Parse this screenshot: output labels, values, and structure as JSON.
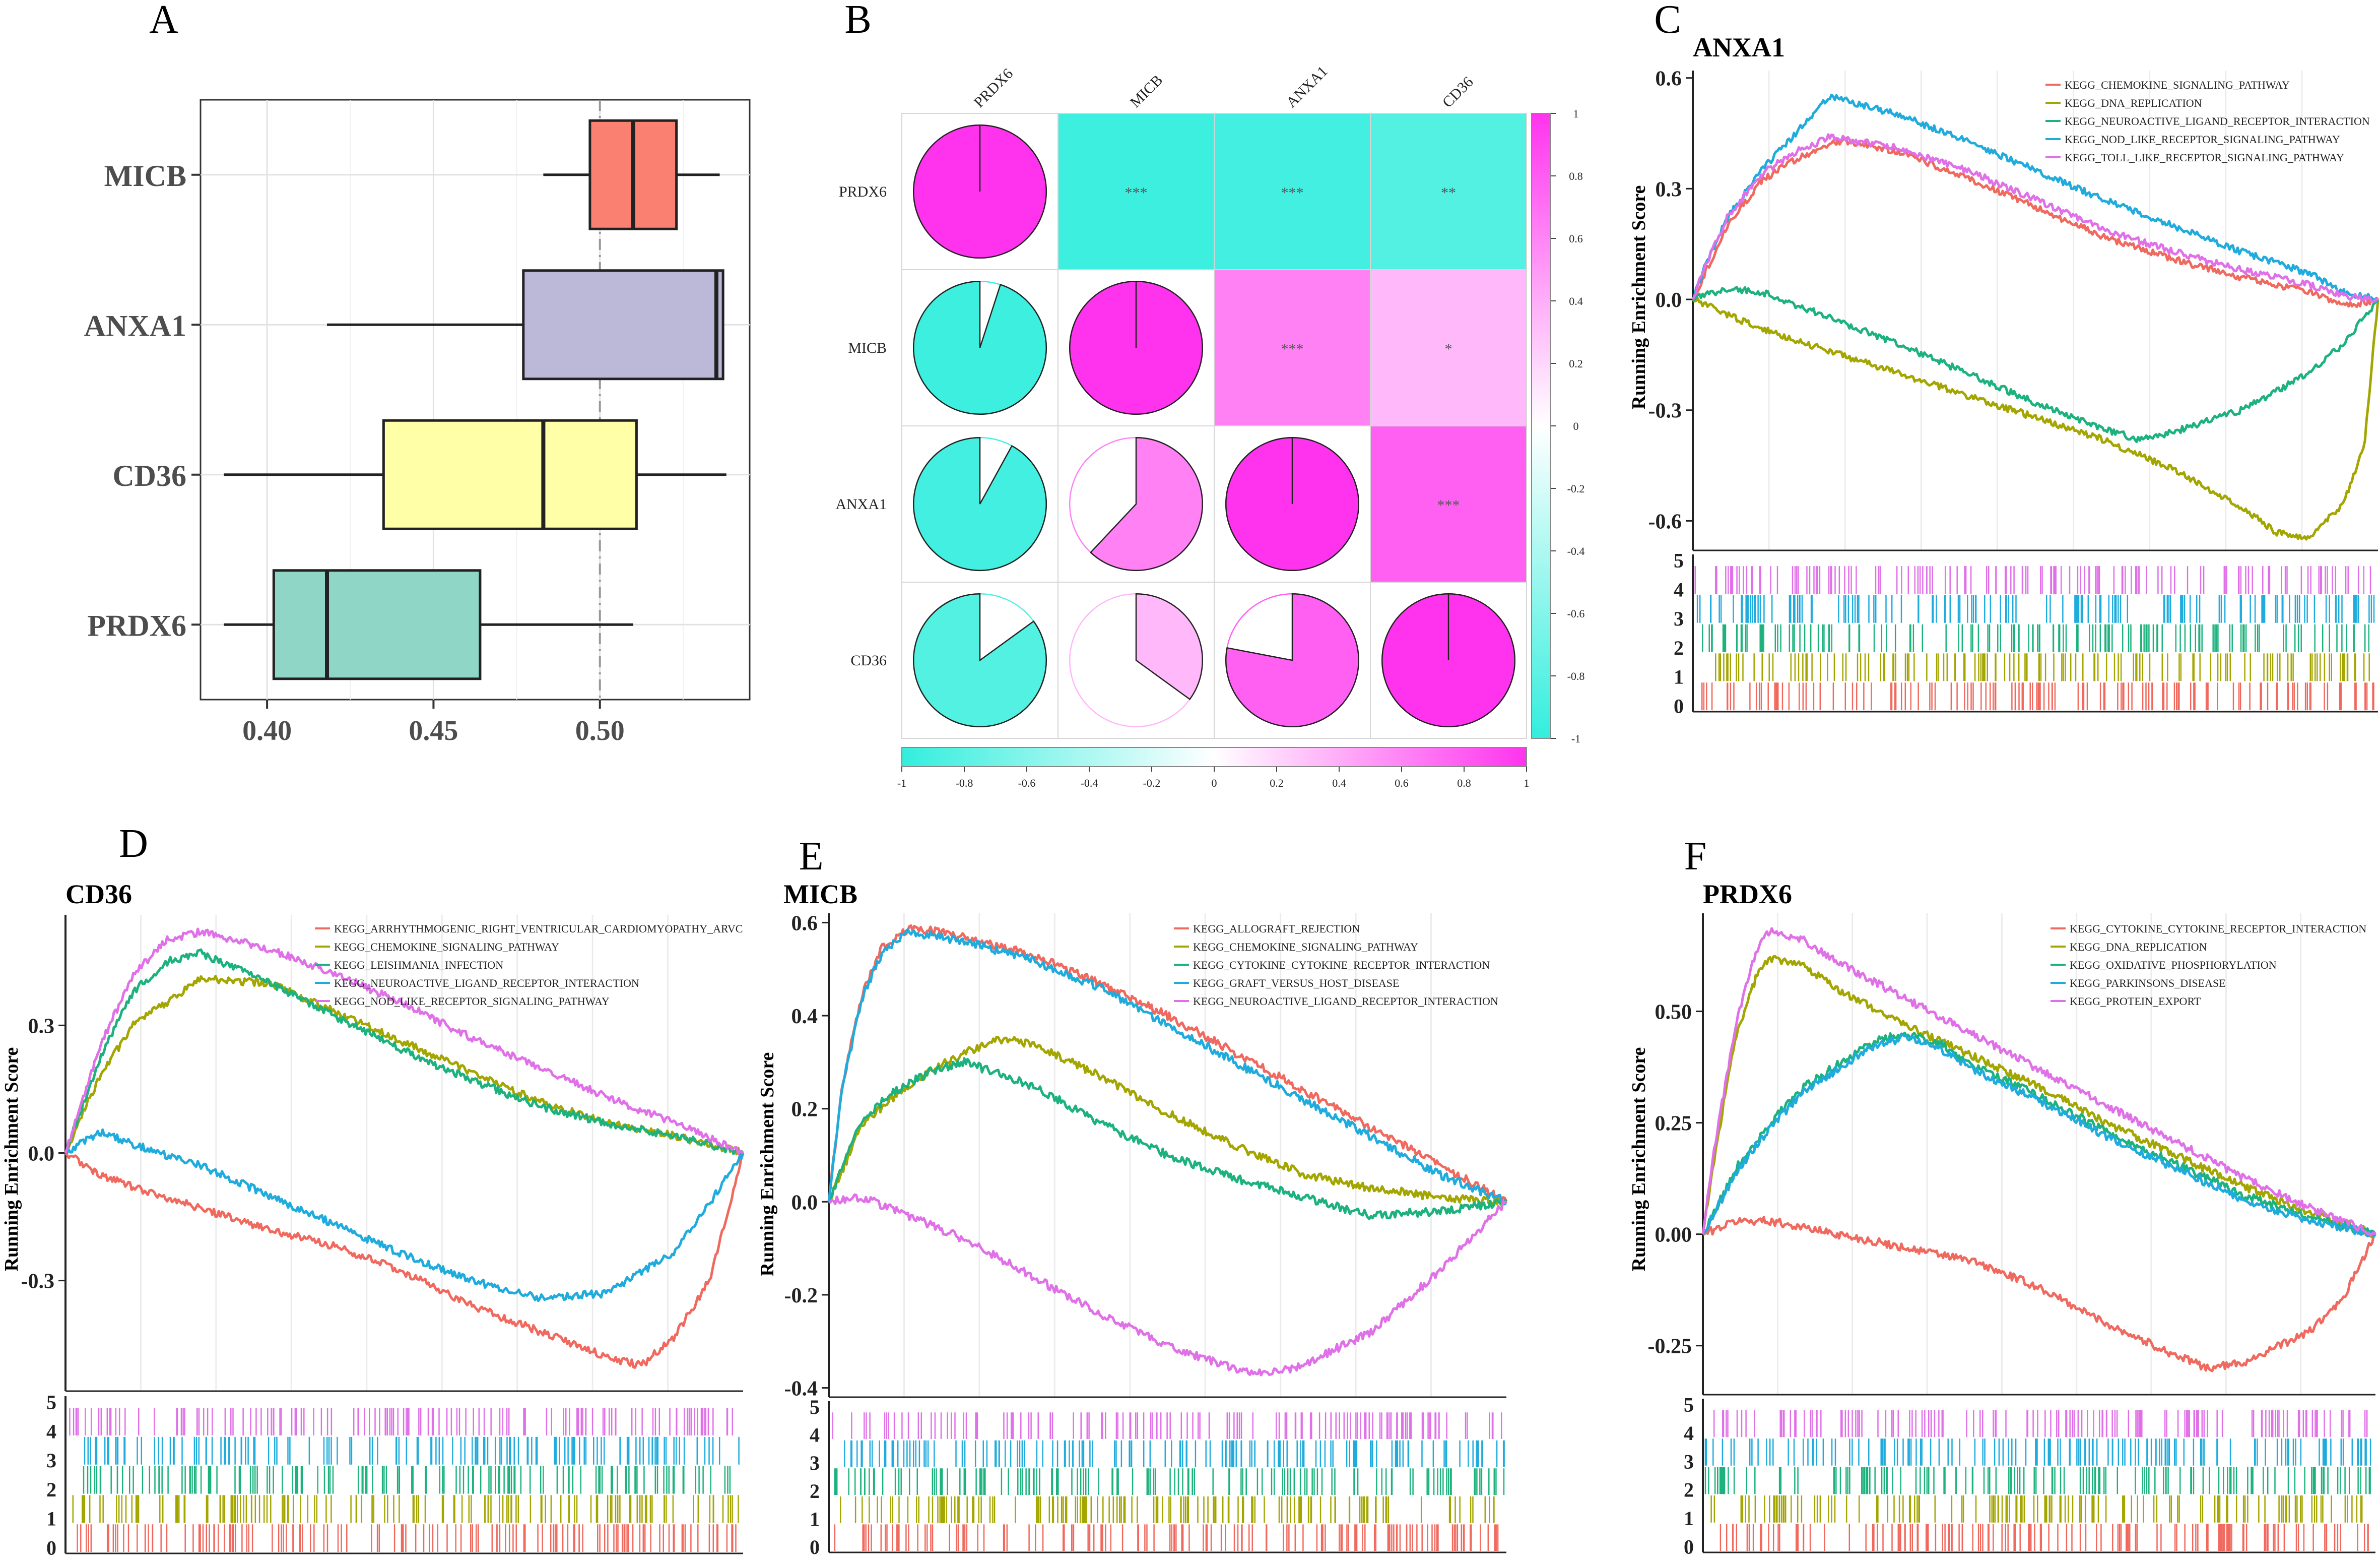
{
  "colors": {
    "red": "#F0695F",
    "olive": "#A3A500",
    "green": "#1DB27D",
    "blue": "#20ABDD",
    "magenta": "#E070E8",
    "box_micb": "#FA8072",
    "box_anxa1": "#BBB8D8",
    "box_cd36": "#FFFFA8",
    "box_prdx6": "#8FD6C6",
    "cor_pos": "#FF33EE",
    "cor_neg": "#33EEDD"
  },
  "chart_data": [
    {
      "panel": "A",
      "type": "boxplot",
      "orientation": "horizontal",
      "title": "",
      "categories": [
        "MICB",
        "ANXA1",
        "CD36",
        "PRDX6"
      ],
      "boxes": [
        {
          "name": "MICB",
          "whisker_low": 0.483,
          "q1": 0.497,
          "median": 0.51,
          "q3": 0.523,
          "whisker_high": 0.536,
          "fill_key": "box_micb"
        },
        {
          "name": "ANXA1",
          "whisker_low": 0.418,
          "q1": 0.477,
          "median": 0.535,
          "q3": 0.537,
          "whisker_high": 0.537,
          "fill_key": "box_anxa1"
        },
        {
          "name": "CD36",
          "whisker_low": 0.387,
          "q1": 0.435,
          "median": 0.483,
          "q3": 0.511,
          "whisker_high": 0.538,
          "fill_key": "box_cd36"
        },
        {
          "name": "PRDX6",
          "whisker_low": 0.387,
          "q1": 0.402,
          "median": 0.418,
          "q3": 0.464,
          "whisker_high": 0.51,
          "fill_key": "box_prdx6"
        }
      ],
      "xlim": [
        0.38,
        0.545
      ],
      "xticks": [
        0.4,
        0.45,
        0.5
      ],
      "xtick_labels": [
        "0.40",
        "0.45",
        "0.50"
      ],
      "reference_line": 0.5,
      "xlabel": "",
      "ylabel": ""
    },
    {
      "panel": "B",
      "type": "heatmap",
      "title": "",
      "genes": [
        "PRDX6",
        "MICB",
        "ANXA1",
        "CD36"
      ],
      "correlation": [
        [
          1.0,
          -0.95,
          -0.92,
          -0.85
        ],
        [
          -0.95,
          1.0,
          0.62,
          0.35
        ],
        [
          -0.92,
          0.62,
          1.0,
          0.78
        ],
        [
          -0.85,
          0.35,
          0.78,
          1.0
        ]
      ],
      "significance": [
        [
          "",
          "***",
          "***",
          "**"
        ],
        [
          "",
          "",
          "***",
          "*"
        ],
        [
          "",
          "",
          "",
          "***"
        ],
        [
          "",
          "",
          "",
          ""
        ]
      ],
      "colorbar_range": [
        -1,
        1
      ],
      "colorbar_ticks": [
        "1",
        "0.8",
        "0.6",
        "0.4",
        "0.2",
        "0",
        "-0.2",
        "-0.4",
        "-0.6",
        "-0.8",
        "-1"
      ],
      "bottom_ticks": [
        "-1",
        "-0.8",
        "-0.6",
        "-0.4",
        "-0.2",
        "0",
        "0.2",
        "0.4",
        "0.6",
        "0.8",
        "1"
      ]
    },
    {
      "panel": "C",
      "type": "line",
      "title": "ANXA1",
      "ylabel": "Running Enrichment Score",
      "xlabel": "",
      "ylim": [
        -0.68,
        0.62
      ],
      "yticks": [
        -0.6,
        -0.3,
        0.0,
        0.3,
        0.6
      ],
      "ytick_labels": [
        "-0.6",
        "-0.3",
        "0.0",
        "0.3",
        "0.6"
      ],
      "rug_labels": [
        "0",
        "1",
        "2",
        "3",
        "4",
        "5"
      ],
      "series": [
        {
          "name": "KEGG_CHEMOKINE_SIGNALING_PATHWAY",
          "color_key": "red",
          "x": [
            0,
            0.02,
            0.05,
            0.1,
            0.15,
            0.2,
            0.22,
            0.3,
            0.4,
            0.5,
            0.6,
            0.7,
            0.8,
            0.9,
            0.95,
            1.0
          ],
          "y": [
            0,
            0.08,
            0.2,
            0.32,
            0.38,
            0.42,
            0.43,
            0.4,
            0.33,
            0.25,
            0.17,
            0.11,
            0.06,
            0.02,
            -0.02,
            0
          ]
        },
        {
          "name": "KEGG_DNA_REPLICATION",
          "color_key": "olive",
          "x": [
            0,
            0.1,
            0.2,
            0.3,
            0.4,
            0.5,
            0.6,
            0.7,
            0.8,
            0.85,
            0.9,
            0.95,
            0.98,
            1.0
          ],
          "y": [
            0,
            -0.08,
            -0.14,
            -0.2,
            -0.26,
            -0.32,
            -0.38,
            -0.46,
            -0.56,
            -0.63,
            -0.65,
            -0.55,
            -0.4,
            0
          ]
        },
        {
          "name": "KEGG_NEUROACTIVE_LIGAND_RECEPTOR_INTERACTION",
          "color_key": "green",
          "x": [
            0,
            0.05,
            0.1,
            0.2,
            0.3,
            0.4,
            0.5,
            0.6,
            0.65,
            0.7,
            0.8,
            0.9,
            0.95,
            1.0
          ],
          "y": [
            0,
            0.03,
            0.02,
            -0.05,
            -0.12,
            -0.2,
            -0.28,
            -0.35,
            -0.38,
            -0.36,
            -0.3,
            -0.2,
            -0.12,
            0
          ]
        },
        {
          "name": "KEGG_NOD_LIKE_RECEPTOR_SIGNALING_PATHWAY",
          "color_key": "blue",
          "x": [
            0,
            0.02,
            0.05,
            0.1,
            0.15,
            0.2,
            0.3,
            0.4,
            0.5,
            0.6,
            0.7,
            0.8,
            0.9,
            0.95,
            1.0
          ],
          "y": [
            0,
            0.1,
            0.22,
            0.35,
            0.45,
            0.55,
            0.5,
            0.43,
            0.35,
            0.27,
            0.2,
            0.13,
            0.07,
            0.02,
            0
          ]
        },
        {
          "name": "KEGG_TOLL_LIKE_RECEPTOR_SIGNALING_PATHWAY",
          "color_key": "magenta",
          "x": [
            0,
            0.02,
            0.05,
            0.1,
            0.15,
            0.2,
            0.3,
            0.4,
            0.5,
            0.6,
            0.7,
            0.8,
            0.9,
            0.95,
            1.0
          ],
          "y": [
            0,
            0.1,
            0.22,
            0.34,
            0.4,
            0.44,
            0.41,
            0.35,
            0.27,
            0.19,
            0.13,
            0.08,
            0.04,
            0.01,
            0
          ]
        }
      ]
    },
    {
      "panel": "D",
      "type": "line",
      "title": "CD36",
      "ylabel": "Running Enrichment Score",
      "xlabel": "",
      "ylim": [
        -0.56,
        0.56
      ],
      "yticks": [
        -0.3,
        0.0,
        0.3
      ],
      "ytick_labels": [
        "-0.3",
        "0.0",
        "0.3"
      ],
      "rug_labels": [
        "0",
        "1",
        "2",
        "3",
        "4",
        "5"
      ],
      "series": [
        {
          "name": "KEGG_ARRHYTHMOGENIC_RIGHT_VENTRICULAR_CARDIOMYOPATHY_ARVC",
          "color_key": "red",
          "x": [
            0,
            0.05,
            0.1,
            0.2,
            0.3,
            0.4,
            0.5,
            0.6,
            0.7,
            0.8,
            0.85,
            0.9,
            0.95,
            1.0
          ],
          "y": [
            0,
            -0.05,
            -0.08,
            -0.13,
            -0.18,
            -0.22,
            -0.28,
            -0.36,
            -0.42,
            -0.48,
            -0.5,
            -0.43,
            -0.3,
            0
          ]
        },
        {
          "name": "KEGG_CHEMOKINE_SIGNALING_PATHWAY",
          "color_key": "olive",
          "x": [
            0,
            0.05,
            0.1,
            0.2,
            0.3,
            0.4,
            0.5,
            0.6,
            0.7,
            0.8,
            0.9,
            1.0
          ],
          "y": [
            0,
            0.18,
            0.3,
            0.41,
            0.4,
            0.33,
            0.26,
            0.19,
            0.12,
            0.07,
            0.04,
            0
          ]
        },
        {
          "name": "KEGG_LEISHMANIA_INFECTION",
          "color_key": "green",
          "x": [
            0,
            0.05,
            0.1,
            0.15,
            0.2,
            0.3,
            0.4,
            0.5,
            0.6,
            0.7,
            0.8,
            0.9,
            1.0
          ],
          "y": [
            0,
            0.22,
            0.38,
            0.45,
            0.47,
            0.4,
            0.32,
            0.24,
            0.17,
            0.11,
            0.07,
            0.04,
            0
          ]
        },
        {
          "name": "KEGG_NEUROACTIVE_LIGAND_RECEPTOR_INTERACTION",
          "color_key": "blue",
          "x": [
            0,
            0.05,
            0.1,
            0.2,
            0.3,
            0.4,
            0.5,
            0.6,
            0.7,
            0.8,
            0.9,
            0.95,
            1.0
          ],
          "y": [
            0,
            0.05,
            0.02,
            -0.03,
            -0.1,
            -0.17,
            -0.24,
            -0.3,
            -0.34,
            -0.33,
            -0.23,
            -0.12,
            0
          ]
        },
        {
          "name": "KEGG_NOD_LIKE_RECEPTOR_SIGNALING_PATHWAY",
          "color_key": "magenta",
          "x": [
            0,
            0.05,
            0.1,
            0.15,
            0.2,
            0.3,
            0.4,
            0.5,
            0.6,
            0.7,
            0.8,
            0.9,
            1.0
          ],
          "y": [
            0,
            0.25,
            0.42,
            0.5,
            0.52,
            0.48,
            0.42,
            0.35,
            0.27,
            0.2,
            0.13,
            0.07,
            0
          ]
        }
      ]
    },
    {
      "panel": "E",
      "type": "line",
      "title": "MICB",
      "ylabel": "Running Enrichment Score",
      "xlabel": "",
      "ylim": [
        -0.42,
        0.62
      ],
      "yticks": [
        -0.4,
        -0.2,
        0.0,
        0.2,
        0.4,
        0.6
      ],
      "ytick_labels": [
        "-0.4",
        "-0.2",
        "0.0",
        "0.2",
        "0.4",
        "0.6"
      ],
      "rug_labels": [
        "0",
        "1",
        "2",
        "3",
        "4",
        "5"
      ],
      "series": [
        {
          "name": "KEGG_ALLOGRAFT_REJECTION",
          "color_key": "red",
          "x": [
            0,
            0.02,
            0.05,
            0.08,
            0.12,
            0.2,
            0.3,
            0.4,
            0.5,
            0.6,
            0.7,
            0.8,
            0.9,
            1.0
          ],
          "y": [
            0,
            0.25,
            0.45,
            0.55,
            0.59,
            0.57,
            0.53,
            0.47,
            0.4,
            0.32,
            0.24,
            0.16,
            0.08,
            0
          ]
        },
        {
          "name": "KEGG_CHEMOKINE_SIGNALING_PATHWAY",
          "color_key": "olive",
          "x": [
            0,
            0.05,
            0.1,
            0.15,
            0.2,
            0.25,
            0.3,
            0.4,
            0.5,
            0.6,
            0.7,
            0.8,
            0.9,
            1.0
          ],
          "y": [
            0,
            0.17,
            0.23,
            0.28,
            0.32,
            0.35,
            0.34,
            0.27,
            0.19,
            0.12,
            0.06,
            0.03,
            0.01,
            0
          ]
        },
        {
          "name": "KEGG_CYTOKINE_CYTOKINE_RECEPTOR_INTERACTION",
          "color_key": "green",
          "x": [
            0,
            0.05,
            0.1,
            0.15,
            0.2,
            0.3,
            0.4,
            0.5,
            0.6,
            0.7,
            0.8,
            0.9,
            1.0
          ],
          "y": [
            0,
            0.18,
            0.24,
            0.28,
            0.3,
            0.25,
            0.17,
            0.1,
            0.05,
            0.01,
            -0.03,
            -0.02,
            0
          ]
        },
        {
          "name": "KEGG_GRAFT_VERSUS_HOST_DISEASE",
          "color_key": "blue",
          "x": [
            0,
            0.02,
            0.05,
            0.08,
            0.12,
            0.2,
            0.3,
            0.4,
            0.5,
            0.6,
            0.7,
            0.8,
            0.9,
            1.0
          ],
          "y": [
            0,
            0.25,
            0.44,
            0.54,
            0.58,
            0.56,
            0.52,
            0.46,
            0.38,
            0.3,
            0.22,
            0.14,
            0.06,
            0
          ]
        },
        {
          "name": "KEGG_NEUROACTIVE_LIGAND_RECEPTOR_INTERACTION",
          "color_key": "magenta",
          "x": [
            0,
            0.05,
            0.1,
            0.2,
            0.3,
            0.4,
            0.5,
            0.6,
            0.65,
            0.7,
            0.8,
            0.9,
            1.0
          ],
          "y": [
            0,
            0.01,
            -0.02,
            -0.08,
            -0.16,
            -0.24,
            -0.31,
            -0.36,
            -0.37,
            -0.35,
            -0.28,
            -0.15,
            0
          ]
        }
      ]
    },
    {
      "panel": "F",
      "type": "line",
      "title": "PRDX6",
      "ylabel": "Running Enrichment Score",
      "xlabel": "",
      "ylim": [
        -0.36,
        0.72
      ],
      "yticks": [
        -0.25,
        0.0,
        0.25,
        0.5
      ],
      "ytick_labels": [
        "-0.25",
        "0.00",
        "0.25",
        "0.50"
      ],
      "rug_labels": [
        "0",
        "1",
        "2",
        "3",
        "4",
        "5"
      ],
      "series": [
        {
          "name": "KEGG_CYTOKINE_CYTOKINE_RECEPTOR_INTERACTION",
          "color_key": "red",
          "x": [
            0,
            0.05,
            0.1,
            0.2,
            0.3,
            0.4,
            0.5,
            0.6,
            0.7,
            0.75,
            0.8,
            0.9,
            0.95,
            1.0
          ],
          "y": [
            0,
            0.03,
            0.03,
            0.0,
            -0.03,
            -0.06,
            -0.12,
            -0.2,
            -0.27,
            -0.3,
            -0.29,
            -0.22,
            -0.15,
            0
          ]
        },
        {
          "name": "KEGG_DNA_REPLICATION",
          "color_key": "olive",
          "x": [
            0,
            0.02,
            0.05,
            0.08,
            0.1,
            0.15,
            0.2,
            0.3,
            0.4,
            0.5,
            0.6,
            0.7,
            0.8,
            0.9,
            1.0
          ],
          "y": [
            0,
            0.2,
            0.45,
            0.58,
            0.62,
            0.6,
            0.55,
            0.47,
            0.4,
            0.33,
            0.25,
            0.18,
            0.11,
            0.05,
            0
          ]
        },
        {
          "name": "KEGG_OXIDATIVE_PHOSPHORYLATION",
          "color_key": "green",
          "x": [
            0,
            0.05,
            0.1,
            0.15,
            0.2,
            0.25,
            0.3,
            0.35,
            0.4,
            0.5,
            0.6,
            0.7,
            0.8,
            0.9,
            1.0
          ],
          "y": [
            0,
            0.15,
            0.25,
            0.33,
            0.38,
            0.43,
            0.45,
            0.43,
            0.38,
            0.31,
            0.23,
            0.16,
            0.09,
            0.04,
            0
          ]
        },
        {
          "name": "KEGG_PARKINSONS_DISEASE",
          "color_key": "blue",
          "x": [
            0,
            0.05,
            0.1,
            0.15,
            0.2,
            0.25,
            0.3,
            0.35,
            0.4,
            0.5,
            0.6,
            0.7,
            0.8,
            0.9,
            1.0
          ],
          "y": [
            0,
            0.14,
            0.24,
            0.32,
            0.37,
            0.42,
            0.44,
            0.42,
            0.37,
            0.3,
            0.22,
            0.15,
            0.08,
            0.03,
            0
          ]
        },
        {
          "name": "KEGG_PROTEIN_EXPORT",
          "color_key": "magenta",
          "x": [
            0,
            0.02,
            0.05,
            0.08,
            0.1,
            0.15,
            0.2,
            0.3,
            0.4,
            0.5,
            0.6,
            0.7,
            0.8,
            0.9,
            1.0
          ],
          "y": [
            0,
            0.22,
            0.48,
            0.64,
            0.68,
            0.66,
            0.61,
            0.53,
            0.45,
            0.37,
            0.29,
            0.21,
            0.13,
            0.06,
            0
          ]
        }
      ]
    }
  ],
  "panel_labels": [
    "A",
    "B",
    "C",
    "D",
    "E",
    "F"
  ]
}
